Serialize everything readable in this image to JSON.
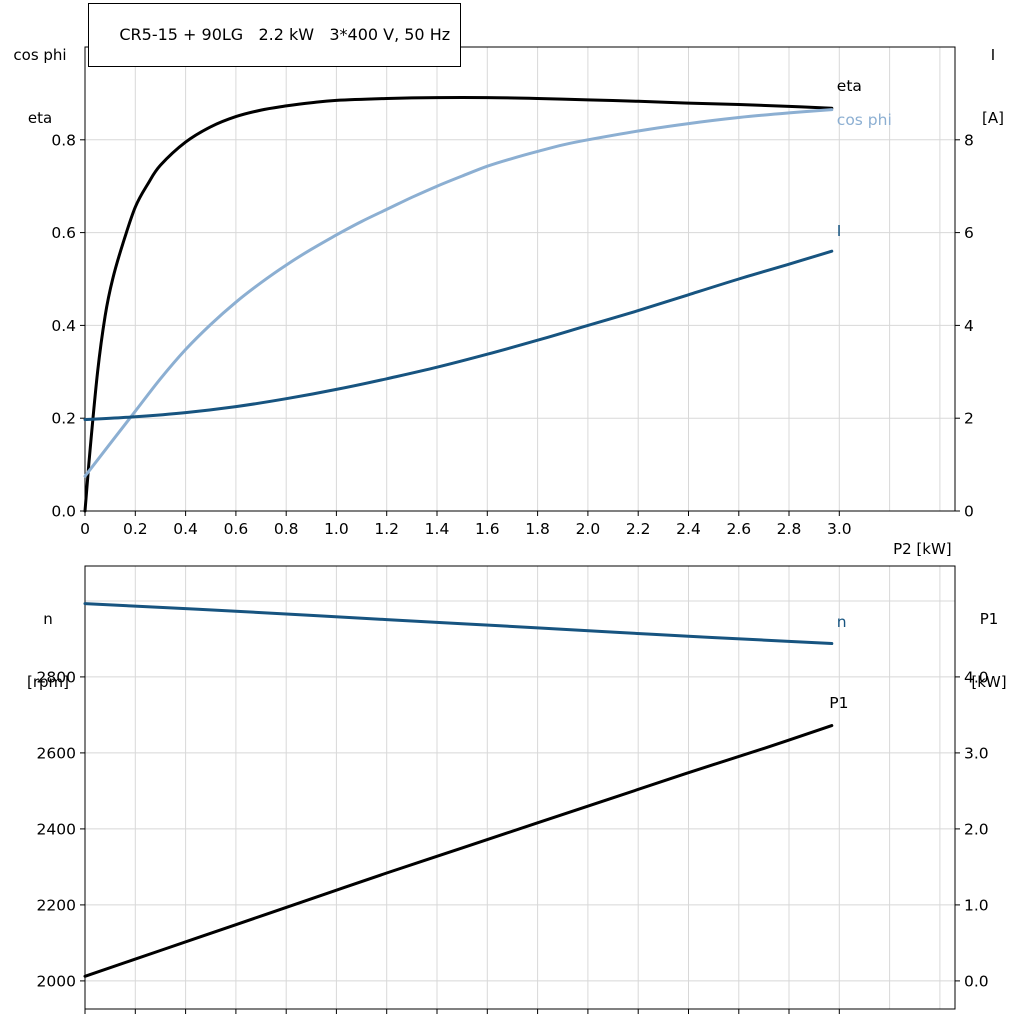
{
  "colors": {
    "black": "#000000",
    "light_blue": "#8cafd2",
    "dark_blue": "#175480",
    "grid": "#d8d8d8",
    "frame": "#000000"
  },
  "chart_data": {
    "top": {
      "type": "line",
      "title": "CR5-15 + 90LG   2.2 kW   3*400 V, 50 Hz",
      "xlabel": "P2 [kW]",
      "ylabel_left": [
        "cos phi",
        "eta"
      ],
      "ylabel_right": [
        "I",
        "[A]"
      ],
      "xlim": [
        0,
        3.46
      ],
      "ylim_left": [
        0,
        1.0
      ],
      "ylim_right": [
        0,
        10
      ],
      "grid_step_x": 0.2,
      "grid_step_y": 0.2,
      "xticks": [
        0,
        0.2,
        0.4,
        0.6,
        0.8,
        1.0,
        1.2,
        1.4,
        1.6,
        1.8,
        2.0,
        2.2,
        2.4,
        2.6,
        2.8,
        3.0
      ],
      "xtick_labels": [
        "0",
        "0.2",
        "0.4",
        "0.6",
        "0.8",
        "1.0",
        "1.2",
        "1.4",
        "1.6",
        "1.8",
        "2.0",
        "2.2",
        "2.4",
        "2.6",
        "2.8",
        "3.0"
      ],
      "yticks_left": [
        0,
        0.2,
        0.4,
        0.6,
        0.8
      ],
      "ytick_labels_left": [
        "0.0",
        "0.2",
        "0.4",
        "0.6",
        "0.8"
      ],
      "yticks_right": [
        0,
        2,
        4,
        6,
        8
      ],
      "ytick_labels_right": [
        "0",
        "2",
        "4",
        "6",
        "8"
      ],
      "series": [
        {
          "id": "eta",
          "label": "eta",
          "axis": "left",
          "color": "#000000",
          "label_at": [
            2.99,
            0.916
          ],
          "points": [
            [
              0,
              0
            ],
            [
              0.02,
              0.13
            ],
            [
              0.05,
              0.3
            ],
            [
              0.08,
              0.42
            ],
            [
              0.11,
              0.5
            ],
            [
              0.15,
              0.575
            ],
            [
              0.2,
              0.655
            ],
            [
              0.25,
              0.705
            ],
            [
              0.3,
              0.745
            ],
            [
              0.4,
              0.795
            ],
            [
              0.5,
              0.828
            ],
            [
              0.6,
              0.85
            ],
            [
              0.7,
              0.864
            ],
            [
              0.8,
              0.873
            ],
            [
              0.9,
              0.88
            ],
            [
              1.0,
              0.885
            ],
            [
              1.2,
              0.889
            ],
            [
              1.4,
              0.891
            ],
            [
              1.6,
              0.891
            ],
            [
              1.8,
              0.889
            ],
            [
              2.0,
              0.886
            ],
            [
              2.2,
              0.883
            ],
            [
              2.4,
              0.879
            ],
            [
              2.6,
              0.876
            ],
            [
              2.8,
              0.872
            ],
            [
              2.97,
              0.868
            ]
          ]
        },
        {
          "id": "cos_phi",
          "label": "cos phi",
          "axis": "left",
          "color": "#8cafd2",
          "label_at": [
            2.99,
            0.843
          ],
          "points": [
            [
              0,
              0.075
            ],
            [
              0.1,
              0.145
            ],
            [
              0.2,
              0.215
            ],
            [
              0.3,
              0.285
            ],
            [
              0.4,
              0.348
            ],
            [
              0.5,
              0.402
            ],
            [
              0.6,
              0.45
            ],
            [
              0.7,
              0.492
            ],
            [
              0.8,
              0.53
            ],
            [
              0.9,
              0.564
            ],
            [
              1.0,
              0.595
            ],
            [
              1.1,
              0.624
            ],
            [
              1.2,
              0.65
            ],
            [
              1.3,
              0.676
            ],
            [
              1.4,
              0.7
            ],
            [
              1.5,
              0.722
            ],
            [
              1.6,
              0.743
            ],
            [
              1.7,
              0.76
            ],
            [
              1.8,
              0.775
            ],
            [
              1.9,
              0.789
            ],
            [
              2.0,
              0.8
            ],
            [
              2.2,
              0.819
            ],
            [
              2.4,
              0.835
            ],
            [
              2.6,
              0.848
            ],
            [
              2.8,
              0.858
            ],
            [
              2.97,
              0.865
            ]
          ]
        },
        {
          "id": "current",
          "label": "I",
          "axis": "right",
          "color": "#175480",
          "label_at": [
            2.99,
            6.03
          ],
          "points": [
            [
              0,
              1.97
            ],
            [
              0.2,
              2.03
            ],
            [
              0.4,
              2.12
            ],
            [
              0.6,
              2.25
            ],
            [
              0.8,
              2.42
            ],
            [
              1.0,
              2.62
            ],
            [
              1.2,
              2.85
            ],
            [
              1.4,
              3.1
            ],
            [
              1.6,
              3.38
            ],
            [
              1.8,
              3.68
            ],
            [
              2.0,
              4.0
            ],
            [
              2.2,
              4.32
            ],
            [
              2.4,
              4.66
            ],
            [
              2.6,
              5.0
            ],
            [
              2.8,
              5.32
            ],
            [
              2.97,
              5.6
            ]
          ]
        }
      ]
    },
    "bottom": {
      "type": "line",
      "ylabel_left": [
        "n",
        "[rpm]"
      ],
      "ylabel_right": [
        "P1",
        "[kW]"
      ],
      "xlim": [
        0,
        3.46
      ],
      "ylim_left": [
        1926,
        3092
      ],
      "ylim_right": [
        -0.37,
        5.46
      ],
      "grid_step_x": 0.2,
      "grid_step_y": 200,
      "xticks": [
        0,
        0.2,
        0.4,
        0.6,
        0.8,
        1.0,
        1.2,
        1.4,
        1.6,
        1.8,
        2.0,
        2.2,
        2.4,
        2.6,
        2.8,
        3.0
      ],
      "xtick_labels": [],
      "yticks_left": [
        2000,
        2200,
        2400,
        2600,
        2800
      ],
      "ytick_labels_left": [
        "2000",
        "2200",
        "2400",
        "2600",
        "2800"
      ],
      "yticks_right": [
        0,
        1,
        2,
        3,
        4
      ],
      "ytick_labels_right": [
        "0.0",
        "1.0",
        "2.0",
        "3.0",
        "4.0"
      ],
      "series": [
        {
          "id": "speed",
          "label": "n",
          "axis": "left",
          "color": "#175480",
          "label_at": [
            2.99,
            2945
          ],
          "points": [
            [
              0,
              2993
            ],
            [
              0.3,
              2983
            ],
            [
              0.6,
              2973
            ],
            [
              0.9,
              2962
            ],
            [
              1.2,
              2951
            ],
            [
              1.5,
              2940
            ],
            [
              1.8,
              2929
            ],
            [
              2.1,
              2918
            ],
            [
              2.4,
              2907
            ],
            [
              2.7,
              2897
            ],
            [
              2.97,
              2888
            ]
          ]
        },
        {
          "id": "input_power",
          "label": "P1",
          "axis": "right",
          "color": "#000000",
          "label_at": [
            2.96,
            3.66
          ],
          "points": [
            [
              0,
              0.06
            ],
            [
              0.3,
              0.4
            ],
            [
              0.6,
              0.74
            ],
            [
              0.9,
              1.08
            ],
            [
              1.2,
              1.42
            ],
            [
              1.5,
              1.75
            ],
            [
              1.8,
              2.08
            ],
            [
              2.1,
              2.41
            ],
            [
              2.4,
              2.74
            ],
            [
              2.7,
              3.06
            ],
            [
              2.97,
              3.36
            ]
          ]
        }
      ]
    }
  }
}
